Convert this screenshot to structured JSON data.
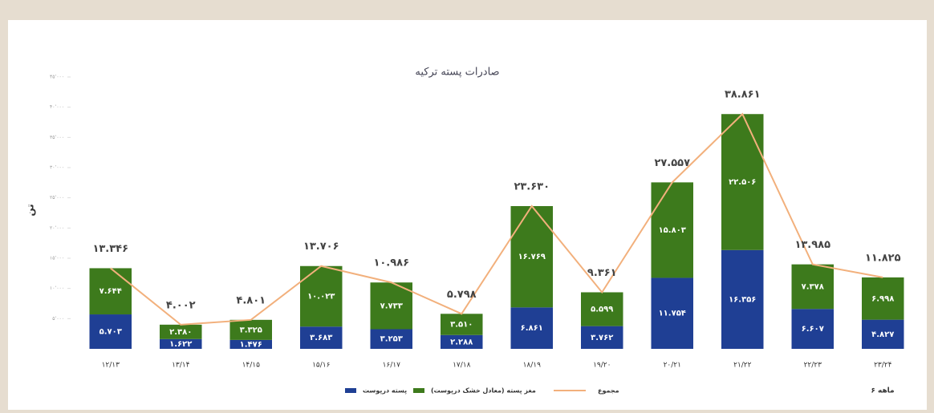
{
  "chart_data": {
    "type": "bar",
    "stacked": true,
    "title": "صادرات پسته ترکیه",
    "y_label": "تن",
    "annotation": "۶ ماهه",
    "categories": [
      "۱۲/۱۳",
      "۱۳/۱۴",
      "۱۴/۱۵",
      "۱۵/۱۶",
      "۱۶/۱۷",
      "۱۷/۱۸",
      "۱۸/۱۹",
      "۱۹/۲۰",
      "۲۰/۲۱",
      "۲۱/۲۲",
      "۲۲/۲۳",
      "۲۳/۲۴"
    ],
    "series": [
      {
        "name": "پسته درپوست",
        "color": "#1f3f94",
        "type": "bar",
        "values": [
          5703,
          1622,
          1476,
          3683,
          3253,
          2288,
          6861,
          3762,
          11754,
          16356,
          6607,
          4827
        ],
        "value_labels": [
          "۵.۷۰۳",
          "۱.۶۲۲",
          "۱.۴۷۶",
          "۳.۶۸۳",
          "۳.۲۵۳",
          "۲.۲۸۸",
          "۶.۸۶۱",
          "۳.۷۶۲",
          "۱۱.۷۵۴",
          "۱۶.۳۵۶",
          "۶.۶۰۷",
          "۴.۸۲۷"
        ]
      },
      {
        "name": "مغز پسته (معادل خشک درپوست)",
        "color": "#3d7a1c",
        "type": "bar",
        "values": [
          7644,
          2380,
          3325,
          10023,
          7733,
          3510,
          16769,
          5599,
          15803,
          22506,
          7378,
          6998
        ],
        "value_labels": [
          "۷.۶۴۴",
          "۲.۳۸۰",
          "۳.۳۲۵",
          "۱۰.۰۲۳",
          "۷.۷۳۳",
          "۳.۵۱۰",
          "۱۶.۷۶۹",
          "۵.۵۹۹",
          "۱۵.۸۰۳",
          "۲۲.۵۰۶",
          "۷.۳۷۸",
          "۶.۹۹۸"
        ]
      },
      {
        "name": "مجموع",
        "color": "#f2b07c",
        "type": "line",
        "values": [
          13346,
          4002,
          4801,
          13706,
          10986,
          5798,
          23630,
          9361,
          27557,
          38861,
          13985,
          11825
        ],
        "value_labels": [
          "۱۳.۳۴۶",
          "۴.۰۰۲",
          "۴.۸۰۱",
          "۱۳.۷۰۶",
          "۱۰.۹۸۶",
          "۵.۷۹۸",
          "۲۳.۶۳۰",
          "۹.۳۶۱",
          "۲۷.۵۵۷",
          "۳۸.۸۶۱",
          "۱۳.۹۸۵",
          "۱۱.۸۲۵"
        ]
      }
    ],
    "ylim": [
      0,
      45000
    ],
    "yticks": [
      {
        "value": 5000,
        "label": "۵٬۰۰۰"
      },
      {
        "value": 10000,
        "label": "۱۰٬۰۰۰"
      },
      {
        "value": 15000,
        "label": "۱۵٬۰۰۰"
      },
      {
        "value": 20000,
        "label": "۲۰٬۰۰۰"
      },
      {
        "value": 25000,
        "label": "۲۵٬۰۰۰"
      },
      {
        "value": 30000,
        "label": "۳۰٬۰۰۰"
      },
      {
        "value": 35000,
        "label": "۳۵٬۰۰۰"
      },
      {
        "value": 40000,
        "label": "۴۰٬۰۰۰"
      },
      {
        "value": 45000,
        "label": "۴۵٬۰۰۰"
      }
    ],
    "grid": false
  }
}
